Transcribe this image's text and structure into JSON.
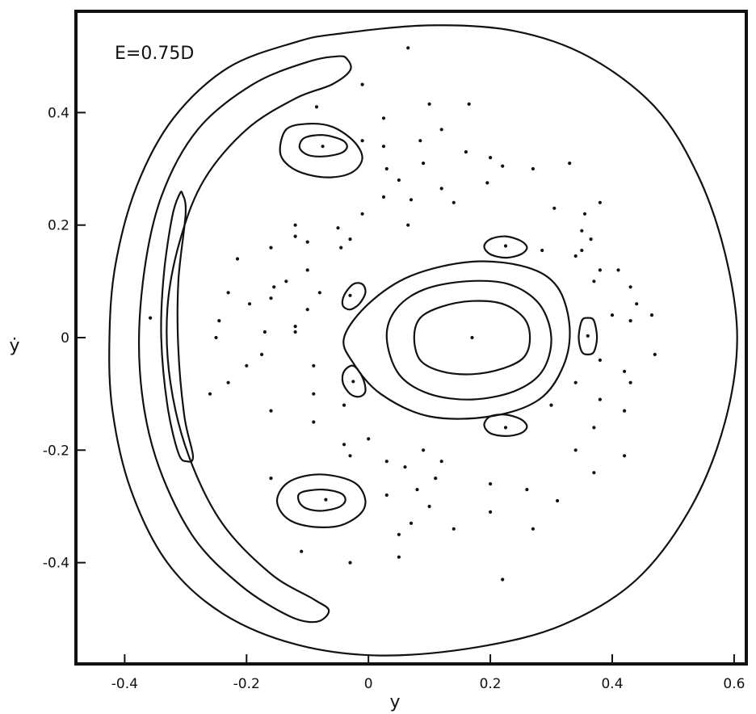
{
  "chart_data": {
    "type": "scatter",
    "title": "",
    "annotation": "E=0.75D",
    "xlabel": "y",
    "ylabel": "ẏ",
    "xlim": [
      -0.48,
      0.62
    ],
    "ylim": [
      -0.58,
      0.58
    ],
    "x_ticks": [
      {
        "value": -0.4,
        "label": "-0.4"
      },
      {
        "value": -0.2,
        "label": "-0.2"
      },
      {
        "value": 0,
        "label": "0"
      },
      {
        "value": 0.2,
        "label": "0.2"
      },
      {
        "value": 0.4,
        "label": "0.4"
      },
      {
        "value": 0.6,
        "label": "0.6"
      }
    ],
    "y_ticks": [
      {
        "value": 0.4,
        "label": "0.4"
      },
      {
        "value": 0.2,
        "label": "0.2"
      },
      {
        "value": 0,
        "label": "0"
      },
      {
        "value": -0.2,
        "label": "-0.2"
      },
      {
        "value": -0.4,
        "label": "-0.4"
      }
    ],
    "grid": false,
    "curves": [
      {
        "name": "boundary",
        "points": [
          [
            -0.05,
            0.54
          ],
          [
            0.1,
            0.555
          ],
          [
            0.24,
            0.545
          ],
          [
            0.36,
            0.5
          ],
          [
            0.47,
            0.41
          ],
          [
            0.54,
            0.29
          ],
          [
            0.585,
            0.15
          ],
          [
            0.605,
            0.0
          ],
          [
            0.585,
            -0.15
          ],
          [
            0.53,
            -0.3
          ],
          [
            0.44,
            -0.43
          ],
          [
            0.32,
            -0.51
          ],
          [
            0.18,
            -0.55
          ],
          [
            0.02,
            -0.565
          ],
          [
            -0.12,
            -0.545
          ],
          [
            -0.24,
            -0.49
          ],
          [
            -0.33,
            -0.4
          ],
          [
            -0.39,
            -0.27
          ],
          [
            -0.42,
            -0.13
          ],
          [
            -0.425,
            0.0
          ],
          [
            -0.415,
            0.13
          ],
          [
            -0.38,
            0.27
          ],
          [
            -0.32,
            0.39
          ],
          [
            -0.23,
            0.48
          ],
          [
            -0.12,
            0.525
          ],
          [
            -0.05,
            0.54
          ]
        ]
      },
      {
        "name": "outer-crescent",
        "points": [
          [
            -0.035,
            0.495
          ],
          [
            -0.03,
            0.475
          ],
          [
            -0.06,
            0.45
          ],
          [
            -0.12,
            0.425
          ],
          [
            -0.2,
            0.37
          ],
          [
            -0.27,
            0.28
          ],
          [
            -0.31,
            0.17
          ],
          [
            -0.33,
            0.05
          ],
          [
            -0.325,
            -0.08
          ],
          [
            -0.295,
            -0.21
          ],
          [
            -0.24,
            -0.33
          ],
          [
            -0.16,
            -0.42
          ],
          [
            -0.09,
            -0.465
          ],
          [
            -0.065,
            -0.485
          ],
          [
            -0.085,
            -0.505
          ],
          [
            -0.13,
            -0.495
          ],
          [
            -0.21,
            -0.44
          ],
          [
            -0.29,
            -0.35
          ],
          [
            -0.35,
            -0.21
          ],
          [
            -0.375,
            -0.06
          ],
          [
            -0.37,
            0.1
          ],
          [
            -0.34,
            0.25
          ],
          [
            -0.28,
            0.37
          ],
          [
            -0.19,
            0.45
          ],
          [
            -0.1,
            0.49
          ],
          [
            -0.05,
            0.5
          ],
          [
            -0.035,
            0.495
          ]
        ]
      },
      {
        "name": "inner-crescent",
        "points": [
          [
            -0.305,
            0.255
          ],
          [
            -0.3,
            0.22
          ],
          [
            -0.312,
            0.1
          ],
          [
            -0.312,
            -0.02
          ],
          [
            -0.302,
            -0.14
          ],
          [
            -0.288,
            -0.21
          ],
          [
            -0.298,
            -0.22
          ],
          [
            -0.312,
            -0.205
          ],
          [
            -0.33,
            -0.12
          ],
          [
            -0.34,
            0.0
          ],
          [
            -0.336,
            0.11
          ],
          [
            -0.322,
            0.215
          ],
          [
            -0.31,
            0.255
          ],
          [
            -0.305,
            0.255
          ]
        ]
      },
      {
        "name": "central-outer",
        "points": [
          [
            -0.04,
            0.0
          ],
          [
            0.0,
            0.06
          ],
          [
            0.07,
            0.11
          ],
          [
            0.17,
            0.135
          ],
          [
            0.26,
            0.125
          ],
          [
            0.31,
            0.09
          ],
          [
            0.33,
            0.02
          ],
          [
            0.32,
            -0.05
          ],
          [
            0.28,
            -0.11
          ],
          [
            0.2,
            -0.14
          ],
          [
            0.1,
            -0.14
          ],
          [
            0.02,
            -0.1
          ],
          [
            -0.025,
            -0.045
          ],
          [
            -0.04,
            0.0
          ]
        ]
      },
      {
        "name": "central-middle",
        "points": [
          [
            0.03,
            0.0
          ],
          [
            0.045,
            0.05
          ],
          [
            0.09,
            0.085
          ],
          [
            0.16,
            0.1
          ],
          [
            0.23,
            0.095
          ],
          [
            0.28,
            0.06
          ],
          [
            0.3,
            0.0
          ],
          [
            0.285,
            -0.06
          ],
          [
            0.24,
            -0.095
          ],
          [
            0.17,
            -0.11
          ],
          [
            0.1,
            -0.1
          ],
          [
            0.05,
            -0.065
          ],
          [
            0.03,
            0.0
          ]
        ]
      },
      {
        "name": "central-inner",
        "points": [
          [
            0.075,
            0.0
          ],
          [
            0.085,
            0.035
          ],
          [
            0.12,
            0.055
          ],
          [
            0.17,
            0.065
          ],
          [
            0.22,
            0.06
          ],
          [
            0.255,
            0.035
          ],
          [
            0.265,
            0.0
          ],
          [
            0.255,
            -0.035
          ],
          [
            0.22,
            -0.055
          ],
          [
            0.17,
            -0.065
          ],
          [
            0.12,
            -0.06
          ],
          [
            0.085,
            -0.04
          ],
          [
            0.075,
            0.0
          ]
        ]
      },
      {
        "name": "upper-island-outer",
        "points": [
          [
            -0.135,
            0.37
          ],
          [
            -0.1,
            0.38
          ],
          [
            -0.06,
            0.375
          ],
          [
            -0.025,
            0.35
          ],
          [
            -0.01,
            0.32
          ],
          [
            -0.025,
            0.295
          ],
          [
            -0.06,
            0.285
          ],
          [
            -0.1,
            0.29
          ],
          [
            -0.13,
            0.305
          ],
          [
            -0.145,
            0.33
          ],
          [
            -0.135,
            0.37
          ]
        ]
      },
      {
        "name": "upper-island-inner",
        "points": [
          [
            -0.105,
            0.355
          ],
          [
            -0.075,
            0.36
          ],
          [
            -0.045,
            0.352
          ],
          [
            -0.035,
            0.34
          ],
          [
            -0.045,
            0.328
          ],
          [
            -0.075,
            0.322
          ],
          [
            -0.1,
            0.325
          ],
          [
            -0.113,
            0.338
          ],
          [
            -0.105,
            0.355
          ]
        ]
      },
      {
        "name": "lower-island-outer",
        "points": [
          [
            -0.135,
            -0.26
          ],
          [
            -0.1,
            -0.245
          ],
          [
            -0.06,
            -0.245
          ],
          [
            -0.02,
            -0.26
          ],
          [
            -0.005,
            -0.29
          ],
          [
            -0.015,
            -0.315
          ],
          [
            -0.05,
            -0.335
          ],
          [
            -0.1,
            -0.335
          ],
          [
            -0.135,
            -0.32
          ],
          [
            -0.15,
            -0.29
          ],
          [
            -0.135,
            -0.26
          ]
        ]
      },
      {
        "name": "lower-island-inner",
        "points": [
          [
            -0.11,
            -0.275
          ],
          [
            -0.075,
            -0.27
          ],
          [
            -0.045,
            -0.277
          ],
          [
            -0.038,
            -0.29
          ],
          [
            -0.05,
            -0.302
          ],
          [
            -0.08,
            -0.308
          ],
          [
            -0.105,
            -0.302
          ],
          [
            -0.115,
            -0.288
          ],
          [
            -0.11,
            -0.275
          ]
        ]
      },
      {
        "name": "small-island-1",
        "points": [
          [
            -0.04,
            0.075
          ],
          [
            -0.025,
            0.095
          ],
          [
            -0.01,
            0.095
          ],
          [
            -0.005,
            0.08
          ],
          [
            -0.015,
            0.06
          ],
          [
            -0.03,
            0.05
          ],
          [
            -0.042,
            0.057
          ],
          [
            -0.04,
            0.075
          ]
        ]
      },
      {
        "name": "small-island-2",
        "points": [
          [
            -0.04,
            -0.06
          ],
          [
            -0.025,
            -0.05
          ],
          [
            -0.01,
            -0.07
          ],
          [
            -0.005,
            -0.095
          ],
          [
            -0.015,
            -0.105
          ],
          [
            -0.03,
            -0.1
          ],
          [
            -0.042,
            -0.08
          ],
          [
            -0.04,
            -0.06
          ]
        ]
      },
      {
        "name": "small-island-3",
        "points": [
          [
            0.2,
            0.175
          ],
          [
            0.225,
            0.18
          ],
          [
            0.25,
            0.172
          ],
          [
            0.26,
            0.16
          ],
          [
            0.25,
            0.148
          ],
          [
            0.225,
            0.142
          ],
          [
            0.2,
            0.148
          ],
          [
            0.19,
            0.162
          ],
          [
            0.2,
            0.175
          ]
        ]
      },
      {
        "name": "small-island-4",
        "points": [
          [
            0.2,
            -0.14
          ],
          [
            0.225,
            -0.137
          ],
          [
            0.25,
            -0.145
          ],
          [
            0.26,
            -0.158
          ],
          [
            0.25,
            -0.17
          ],
          [
            0.225,
            -0.175
          ],
          [
            0.2,
            -0.17
          ],
          [
            0.19,
            -0.155
          ],
          [
            0.2,
            -0.14
          ]
        ]
      },
      {
        "name": "small-island-5",
        "points": [
          [
            0.36,
            0.035
          ],
          [
            0.37,
            0.03
          ],
          [
            0.375,
            0.0
          ],
          [
            0.37,
            -0.025
          ],
          [
            0.36,
            -0.03
          ],
          [
            0.35,
            -0.025
          ],
          [
            0.345,
            0.0
          ],
          [
            0.35,
            0.03
          ],
          [
            0.36,
            0.035
          ]
        ]
      }
    ],
    "points": [
      [
        -0.075,
        0.34
      ],
      [
        -0.07,
        -0.288
      ],
      [
        0.17,
        0.0
      ],
      [
        -0.03,
        0.075
      ],
      [
        -0.025,
        -0.078
      ],
      [
        0.225,
        0.163
      ],
      [
        0.225,
        -0.16
      ],
      [
        0.36,
        0.003
      ],
      [
        -0.358,
        0.035
      ],
      [
        0.065,
        0.515
      ],
      [
        -0.01,
        0.45
      ],
      [
        -0.085,
        0.41
      ],
      [
        0.1,
        0.415
      ],
      [
        0.165,
        0.415
      ],
      [
        0.025,
        0.39
      ],
      [
        0.12,
        0.37
      ],
      [
        -0.01,
        0.35
      ],
      [
        0.085,
        0.35
      ],
      [
        0.025,
        0.34
      ],
      [
        0.16,
        0.33
      ],
      [
        0.2,
        0.32
      ],
      [
        0.09,
        0.31
      ],
      [
        0.22,
        0.305
      ],
      [
        0.33,
        0.31
      ],
      [
        0.03,
        0.3
      ],
      [
        0.27,
        0.3
      ],
      [
        0.05,
        0.28
      ],
      [
        0.195,
        0.275
      ],
      [
        0.12,
        0.265
      ],
      [
        0.025,
        0.25
      ],
      [
        0.07,
        0.245
      ],
      [
        0.14,
        0.24
      ],
      [
        0.38,
        0.24
      ],
      [
        0.305,
        0.23
      ],
      [
        0.355,
        0.22
      ],
      [
        -0.01,
        0.22
      ],
      [
        0.065,
        0.2
      ],
      [
        -0.05,
        0.195
      ],
      [
        0.35,
        0.19
      ],
      [
        -0.12,
        0.2
      ],
      [
        -0.03,
        0.175
      ],
      [
        0.365,
        0.175
      ],
      [
        0.35,
        0.155
      ],
      [
        -0.12,
        0.18
      ],
      [
        -0.1,
        0.17
      ],
      [
        -0.16,
        0.16
      ],
      [
        -0.045,
        0.16
      ],
      [
        0.285,
        0.155
      ],
      [
        0.34,
        0.145
      ],
      [
        -0.215,
        0.14
      ],
      [
        -0.1,
        0.12
      ],
      [
        0.38,
        0.12
      ],
      [
        0.41,
        0.12
      ],
      [
        -0.135,
        0.1
      ],
      [
        -0.155,
        0.09
      ],
      [
        0.37,
        0.1
      ],
      [
        -0.23,
        0.08
      ],
      [
        -0.08,
        0.08
      ],
      [
        0.43,
        0.09
      ],
      [
        0.44,
        0.06
      ],
      [
        -0.16,
        0.07
      ],
      [
        -0.195,
        0.06
      ],
      [
        -0.1,
        0.05
      ],
      [
        0.4,
        0.04
      ],
      [
        -0.245,
        0.03
      ],
      [
        -0.12,
        0.02
      ],
      [
        0.43,
        0.03
      ],
      [
        0.465,
        0.04
      ],
      [
        -0.17,
        0.01
      ],
      [
        -0.25,
        0.0
      ],
      [
        -0.12,
        0.01
      ],
      [
        0.47,
        -0.03
      ],
      [
        -0.175,
        -0.03
      ],
      [
        -0.2,
        -0.05
      ],
      [
        0.38,
        -0.04
      ],
      [
        -0.09,
        -0.05
      ],
      [
        0.42,
        -0.06
      ],
      [
        -0.23,
        -0.08
      ],
      [
        0.43,
        -0.08
      ],
      [
        0.34,
        -0.08
      ],
      [
        -0.26,
        -0.1
      ],
      [
        -0.09,
        -0.1
      ],
      [
        0.38,
        -0.11
      ],
      [
        -0.04,
        -0.12
      ],
      [
        0.3,
        -0.12
      ],
      [
        -0.16,
        -0.13
      ],
      [
        0.42,
        -0.13
      ],
      [
        -0.09,
        -0.15
      ],
      [
        0.37,
        -0.16
      ],
      [
        0.0,
        -0.18
      ],
      [
        -0.04,
        -0.19
      ],
      [
        -0.03,
        -0.21
      ],
      [
        0.09,
        -0.2
      ],
      [
        0.34,
        -0.2
      ],
      [
        0.03,
        -0.22
      ],
      [
        0.06,
        -0.23
      ],
      [
        0.12,
        -0.22
      ],
      [
        0.42,
        -0.21
      ],
      [
        0.11,
        -0.25
      ],
      [
        0.37,
        -0.24
      ],
      [
        0.2,
        -0.26
      ],
      [
        0.08,
        -0.27
      ],
      [
        0.03,
        -0.28
      ],
      [
        0.26,
        -0.27
      ],
      [
        -0.16,
        -0.25
      ],
      [
        0.1,
        -0.3
      ],
      [
        0.31,
        -0.29
      ],
      [
        0.2,
        -0.31
      ],
      [
        0.07,
        -0.33
      ],
      [
        0.05,
        -0.35
      ],
      [
        0.14,
        -0.34
      ],
      [
        0.27,
        -0.34
      ],
      [
        -0.11,
        -0.38
      ],
      [
        0.05,
        -0.39
      ],
      [
        -0.03,
        -0.4
      ],
      [
        0.22,
        -0.43
      ]
    ]
  }
}
